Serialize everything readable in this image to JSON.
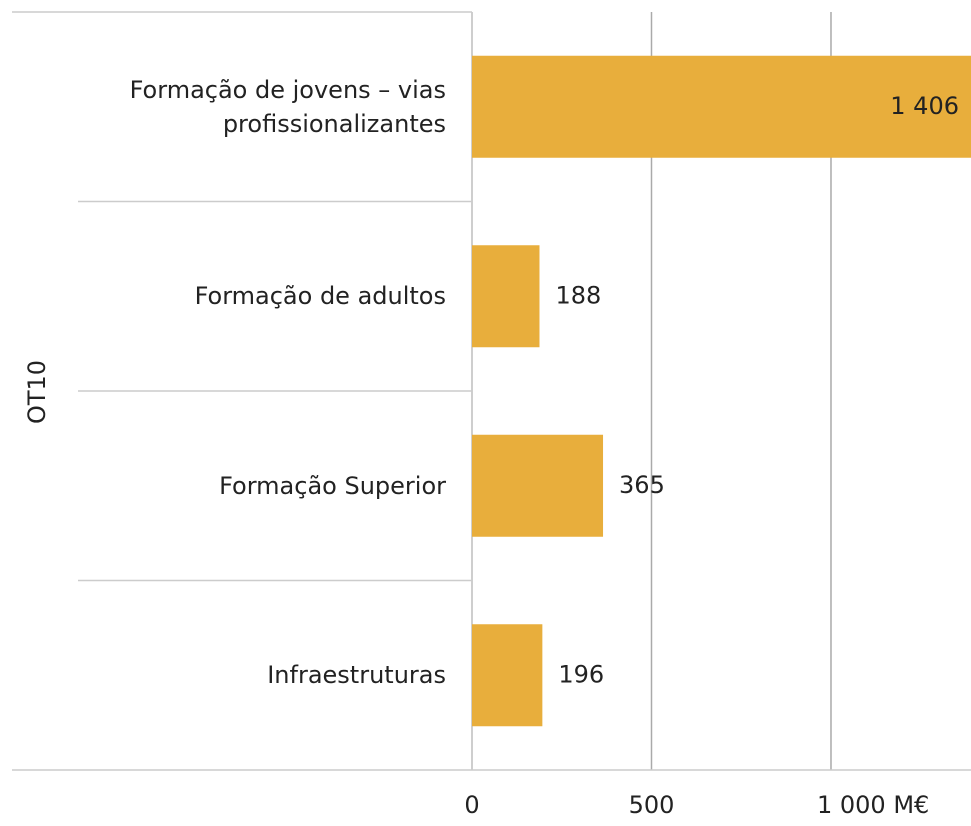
{
  "chart_data": {
    "type": "bar",
    "orientation": "horizontal",
    "y_label": "OT10",
    "categories": [
      "Formação de jovens – vias profissionalizantes",
      "Formação de adultos",
      "Formação Superior",
      "Infraestruturas"
    ],
    "values": [
      1406,
      188,
      365,
      196
    ],
    "value_labels": [
      "1 406",
      "188",
      "365",
      "196"
    ],
    "color": "#e8ae3c",
    "xlim": [
      0,
      1390
    ],
    "xticks": [
      0,
      500,
      {
        "value": 1000,
        "label": "1 000 M€"
      }
    ],
    "grid": true
  }
}
